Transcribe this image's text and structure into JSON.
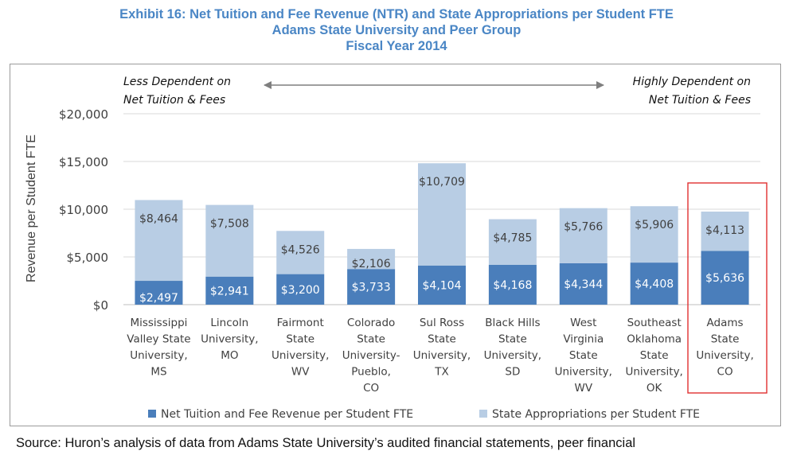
{
  "title": {
    "line1": "Exhibit 16: Net Tuition and Fee Revenue (NTR) and State Appropriations per Student FTE",
    "line2": "Adams State University and Peer Group",
    "line3": "Fiscal Year 2014"
  },
  "annotations": {
    "left_line1": "Less Dependent on",
    "left_line2": "Net Tuition & Fees",
    "right_line1": "Highly Dependent on",
    "right_line2": "Net Tuition & Fees"
  },
  "source": "Source: Huron’s analysis of data from Adams State University’s audited financial statements, peer financial",
  "colors": {
    "ntr": "#4a7ebb",
    "state": "#b8cde4",
    "title": "#4a86c5",
    "highlight": "#e03030",
    "grid": "#d9d9d9",
    "arrow": "#7f7f7f"
  },
  "chart_data": {
    "type": "bar",
    "stacked": true,
    "title": "Exhibit 16: Net Tuition and Fee Revenue (NTR) and State Appropriations per Student FTE",
    "ylabel": "Revenue per Student FTE",
    "xlabel": "",
    "ylim": [
      0,
      20000
    ],
    "yticks": [
      0,
      5000,
      10000,
      15000,
      20000
    ],
    "ytick_labels": [
      "$0",
      "$5,000",
      "$10,000",
      "$15,000",
      "$20,000"
    ],
    "grid": true,
    "legend_position": "bottom",
    "categories": [
      [
        "Mississippi",
        "Valley State",
        "University,",
        "MS"
      ],
      [
        "Lincoln",
        "University,",
        "MO"
      ],
      [
        "Fairmont",
        "State",
        "University,",
        "WV"
      ],
      [
        "Colorado",
        "State",
        "University-",
        "Pueblo,",
        "CO"
      ],
      [
        "Sul Ross",
        "State",
        "University,",
        "TX"
      ],
      [
        "Black Hills",
        "State",
        "University,",
        "SD"
      ],
      [
        "West",
        "Virginia",
        "State",
        "University,",
        "WV"
      ],
      [
        "Southeast",
        "Oklahoma",
        "State",
        "University,",
        "OK"
      ],
      [
        "Adams",
        "State",
        "University,",
        "CO"
      ]
    ],
    "highlighted_category_index": 8,
    "series": [
      {
        "name": "Net Tuition and Fee Revenue per Student FTE",
        "values": [
          2497,
          2941,
          3200,
          3733,
          4104,
          4168,
          4344,
          4408,
          5636
        ],
        "labels": [
          "$2,497",
          "$2,941",
          "$3,200",
          "$3,733",
          "$4,104",
          "$4,168",
          "$4,344",
          "$4,408",
          "$5,636"
        ]
      },
      {
        "name": "State Appropriations per Student FTE",
        "values": [
          8464,
          7508,
          4526,
          2106,
          10709,
          4785,
          5766,
          5906,
          4113
        ],
        "labels": [
          "$8,464",
          "$7,508",
          "$4,526",
          "$2,106",
          "$10,709",
          "$4,785",
          "$5,766",
          "$5,906",
          "$4,113"
        ]
      }
    ]
  }
}
